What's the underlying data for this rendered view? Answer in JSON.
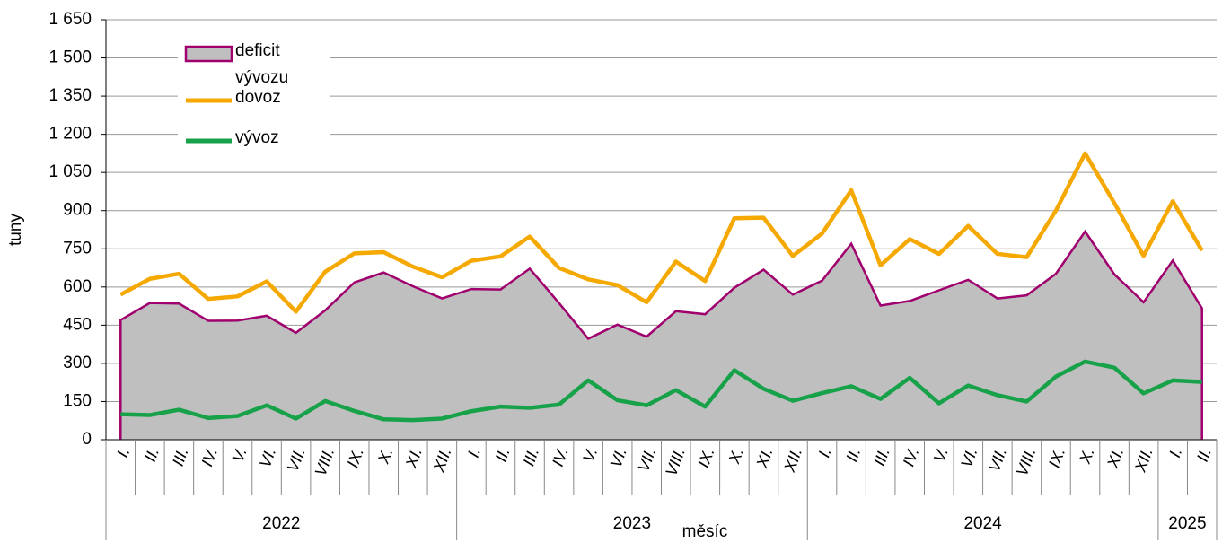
{
  "chart_data": {
    "type": "line",
    "y_label": "tuny",
    "x_label": "měsíc",
    "categories": [
      "I.",
      "II.",
      "III.",
      "IV.",
      "V.",
      "VI.",
      "VII.",
      "VIII.",
      "IX.",
      "X.",
      "XI.",
      "XII.",
      "I.",
      "II.",
      "III.",
      "IV.",
      "V.",
      "VI.",
      "VII.",
      "VIII.",
      "IX.",
      "X.",
      "XI.",
      "XII.",
      "I.",
      "II.",
      "III.",
      "IV.",
      "V.",
      "VI.",
      "VII.",
      "VIII.",
      "IX.",
      "X.",
      "XI.",
      "XII.",
      "I.",
      "II."
    ],
    "groups": [
      {
        "label": "2022",
        "count": 12
      },
      {
        "label": "2023",
        "count": 12
      },
      {
        "label": "2024",
        "count": 12
      },
      {
        "label": "2025",
        "count": 2
      }
    ],
    "series": [
      {
        "name": "deficit vývozu",
        "kind": "area",
        "color": "#bfbfbf",
        "edge_color": "#a0006e",
        "values": [
          470,
          537,
          535,
          467,
          468,
          487,
          420,
          508,
          618,
          657,
          603,
          555,
          592,
          590,
          672,
          537,
          397,
          452,
          405,
          505,
          493,
          597,
          668,
          570,
          625,
          770,
          527,
          545,
          587,
          628,
          555,
          567,
          652,
          818,
          650,
          540,
          704,
          516
        ]
      },
      {
        "name": "dovoz",
        "kind": "line",
        "color": "#f5a800",
        "values": [
          570,
          632,
          652,
          553,
          563,
          622,
          503,
          660,
          732,
          737,
          680,
          638,
          703,
          720,
          798,
          675,
          630,
          607,
          540,
          700,
          623,
          870,
          872,
          722,
          810,
          980,
          685,
          788,
          730,
          840,
          730,
          717,
          900,
          1125,
          930,
          722,
          937,
          743
        ]
      },
      {
        "name": "vývoz",
        "kind": "line",
        "color": "#17a24a",
        "values": [
          100,
          97,
          118,
          85,
          93,
          135,
          83,
          152,
          113,
          80,
          77,
          83,
          112,
          130,
          125,
          138,
          233,
          155,
          135,
          195,
          130,
          273,
          200,
          153,
          183,
          210,
          160,
          243,
          143,
          213,
          175,
          150,
          248,
          307,
          283,
          182,
          233,
          227
        ]
      }
    ],
    "ylim": [
      0,
      1650
    ],
    "yticks": [
      0,
      150,
      300,
      450,
      600,
      750,
      900,
      {
        "value": 1050,
        "label": "1 050"
      },
      {
        "value": 1200,
        "label": "1 200"
      },
      {
        "value": 1350,
        "label": "1 350"
      },
      {
        "value": 1500,
        "label": "1 500"
      },
      {
        "value": 1650,
        "label": "1 650"
      }
    ],
    "grid": true,
    "legend": "top-left"
  }
}
